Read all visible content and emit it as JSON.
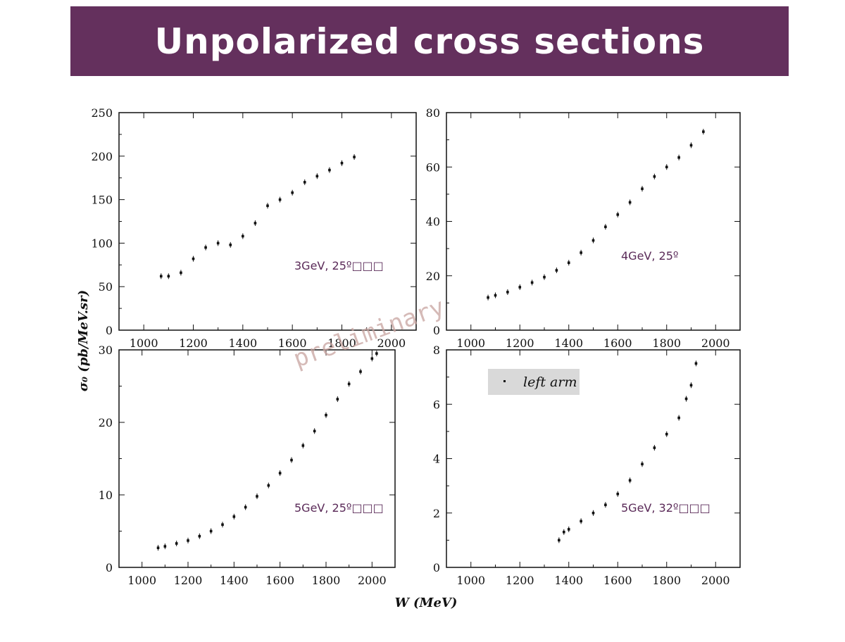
{
  "slide": {
    "title": "Unpolarized cross sections",
    "watermark": "preliminary",
    "colors": {
      "title_bar": "#64305d",
      "title_text": "#ffffff",
      "label": "#5a2a58",
      "legend_bg": "#d9d9d9"
    }
  },
  "chart_data": [
    {
      "type": "scatter",
      "label": "3GeV, 25º□□□",
      "xlabel": "W (MeV)",
      "ylabel": "σ₀ (pb/MeV.sr)",
      "xlim": [
        900,
        2100
      ],
      "ylim": [
        0,
        250
      ],
      "xticks": [
        1000,
        1200,
        1400,
        1600,
        1800,
        2000
      ],
      "yticks": [
        0,
        50,
        100,
        150,
        200,
        250
      ],
      "series": [
        {
          "x": [
            1070,
            1100,
            1150,
            1200,
            1250,
            1300,
            1350,
            1400,
            1450,
            1500,
            1550,
            1600,
            1650,
            1700,
            1750,
            1800,
            1850
          ],
          "y": [
            62,
            62,
            66,
            82,
            95,
            100,
            98,
            108,
            123,
            143,
            150,
            158,
            170,
            177,
            184,
            192,
            199
          ]
        }
      ]
    },
    {
      "type": "scatter",
      "label": "4GeV, 25º",
      "xlabel": "W (MeV)",
      "ylabel": "σ₀ (pb/MeV.sr)",
      "xlim": [
        900,
        2100
      ],
      "ylim": [
        0,
        80
      ],
      "xticks": [
        1000,
        1200,
        1400,
        1600,
        1800,
        2000
      ],
      "yticks": [
        0,
        20,
        40,
        60,
        80
      ],
      "series": [
        {
          "x": [
            1070,
            1100,
            1150,
            1200,
            1250,
            1300,
            1350,
            1400,
            1450,
            1500,
            1550,
            1600,
            1650,
            1700,
            1750,
            1800,
            1850,
            1900,
            1950
          ],
          "y": [
            12,
            12.8,
            14,
            15.8,
            17.5,
            19.5,
            22,
            24.8,
            28.5,
            33,
            38,
            42.5,
            47,
            52,
            56.5,
            60,
            63.5,
            68,
            73
          ]
        }
      ]
    },
    {
      "type": "scatter",
      "label": "5GeV, 25º□□□",
      "xlabel": "W (MeV)",
      "ylabel": "σ₀ (pb/MeV.sr)",
      "xlim": [
        900,
        2100
      ],
      "ylim": [
        0,
        30
      ],
      "xticks": [
        1000,
        1200,
        1400,
        1600,
        1800,
        2000
      ],
      "yticks": [
        0,
        10,
        20,
        30
      ],
      "series": [
        {
          "x": [
            1070,
            1100,
            1150,
            1200,
            1250,
            1300,
            1350,
            1400,
            1450,
            1500,
            1550,
            1600,
            1650,
            1700,
            1750,
            1800,
            1850,
            1900,
            1950,
            2000,
            2020
          ],
          "y": [
            2.7,
            2.9,
            3.3,
            3.7,
            4.3,
            5,
            5.9,
            7,
            8.3,
            9.8,
            11.3,
            13,
            14.8,
            16.8,
            18.8,
            21,
            23.2,
            25.3,
            27,
            28.8,
            29.5
          ]
        }
      ]
    },
    {
      "type": "scatter",
      "label": "5GeV, 32º□□□",
      "legend": "left arm",
      "xlabel": "W (MeV)",
      "ylabel": "σ₀ (pb/MeV.sr)",
      "xlim": [
        900,
        2100
      ],
      "ylim": [
        0,
        8
      ],
      "xticks": [
        1000,
        1200,
        1400,
        1600,
        1800,
        2000
      ],
      "yticks": [
        0,
        2,
        4,
        6,
        8
      ],
      "series": [
        {
          "name": "left arm",
          "x": [
            1360,
            1380,
            1400,
            1450,
            1500,
            1550,
            1600,
            1650,
            1700,
            1750,
            1800,
            1850,
            1880,
            1900,
            1920
          ],
          "y": [
            1,
            1.3,
            1.4,
            1.7,
            2,
            2.3,
            2.7,
            3.2,
            3.8,
            4.4,
            4.9,
            5.5,
            6.2,
            6.7,
            7.5
          ]
        }
      ]
    }
  ]
}
